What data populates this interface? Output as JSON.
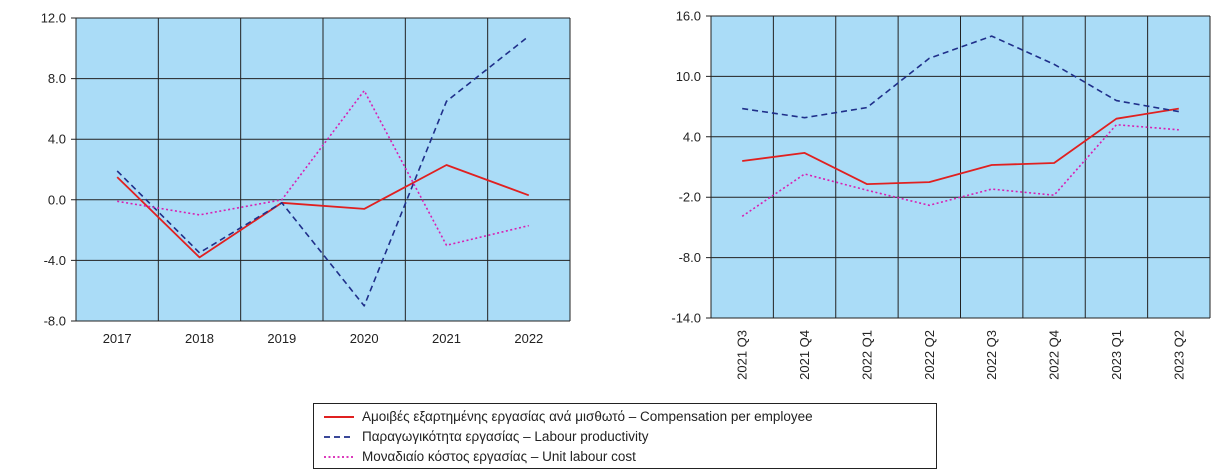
{
  "chart_data": [
    {
      "type": "line",
      "categories": [
        "2017",
        "2018",
        "2019",
        "2020",
        "2021",
        "2022"
      ],
      "ylim": [
        -8,
        12
      ],
      "yticks": [
        "12.0",
        "8.0",
        "4.0",
        "0.0",
        "-4.0",
        "-8.0"
      ],
      "grid": true,
      "background": "#aadcf7",
      "series": [
        {
          "name": "Αμοιβές εξαρτημένης εργασίας ανά μισθωτό – Compensation per employee",
          "color": "#e02020",
          "dash": "solid",
          "values": [
            1.5,
            -3.8,
            -0.2,
            -0.6,
            2.3,
            0.3
          ]
        },
        {
          "name": "Παραγωγικότητα εργασίας – Labour productivity",
          "color": "#1f2f8a",
          "dash": "dashed",
          "values": [
            1.9,
            -3.5,
            -0.2,
            -7.0,
            6.5,
            10.8
          ]
        },
        {
          "name": "Μοναδιαίο κόστος εργασίας – Unit labour cost",
          "color": "#d81fb2",
          "dash": "dotted",
          "values": [
            -0.1,
            -1.0,
            0.0,
            7.2,
            -3.0,
            -1.7
          ]
        }
      ]
    },
    {
      "type": "line",
      "categories": [
        "2021 Q3",
        "2021 Q4",
        "2022 Q1",
        "2022 Q2",
        "2022 Q3",
        "2022 Q4",
        "2023 Q1",
        "2023 Q2"
      ],
      "ylim": [
        -14,
        16
      ],
      "yticks": [
        "16.0",
        "10.0",
        "4.0",
        "-2.0",
        "-8.0",
        "-14.0"
      ],
      "grid": true,
      "background": "#aadcf7",
      "series": [
        {
          "name": "Αμοιβές εξαρτημένης εργασίας ανά μισθωτό – Compensation per employee",
          "color": "#e02020",
          "dash": "solid",
          "values": [
            1.6,
            2.4,
            -0.7,
            -0.5,
            1.2,
            1.4,
            5.8,
            6.8
          ]
        },
        {
          "name": "Παραγωγικότητα εργασίας – Labour productivity",
          "color": "#1f2f8a",
          "dash": "dashed",
          "values": [
            6.8,
            5.9,
            6.9,
            11.8,
            14.0,
            11.2,
            7.6,
            6.5
          ]
        },
        {
          "name": "Μοναδιαίο κόστος εργασίας – Unit labour cost",
          "color": "#d81fb2",
          "dash": "dotted",
          "values": [
            -3.9,
            0.3,
            -1.3,
            -2.8,
            -1.2,
            -1.8,
            5.2,
            4.7
          ]
        }
      ]
    }
  ],
  "legend": {
    "entries": [
      "Αμοιβές εξαρτημένης εργασίας ανά μισθωτό – Compensation per employee",
      "Παραγωγικότητα εργασίας – Labour productivity",
      "Μοναδιαίο κόστος εργασίας – Unit labour cost"
    ]
  }
}
